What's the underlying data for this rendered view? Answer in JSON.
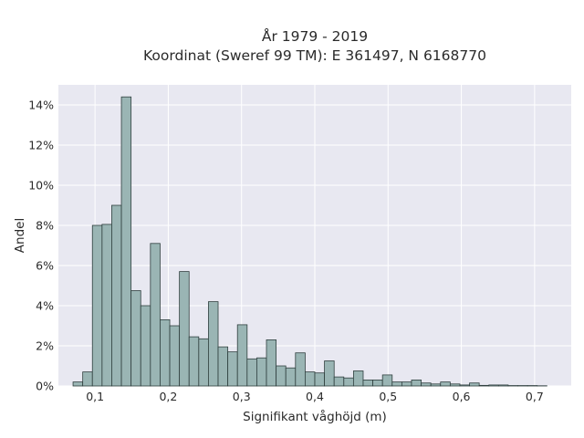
{
  "chart_data": {
    "type": "bar",
    "title_line1": "År 1979 - 2019",
    "title_line2": "Koordinat (Sweref 99 TM): E 361497, N 6168770",
    "xlabel": "Signifikant våghöjd (m)",
    "ylabel": "Andel",
    "xlim": [
      0.05,
      0.75
    ],
    "ylim": [
      0,
      15
    ],
    "xticks": [
      0.1,
      0.2,
      0.3,
      0.4,
      0.5,
      0.6,
      0.7
    ],
    "xtick_labels": [
      "0,1",
      "0,2",
      "0,3",
      "0,4",
      "0,5",
      "0,6",
      "0,7"
    ],
    "yticks": [
      0,
      2,
      4,
      6,
      8,
      10,
      12,
      14
    ],
    "ytick_labels": [
      "0%",
      "2%",
      "4%",
      "6%",
      "8%",
      "10%",
      "12%",
      "14%"
    ],
    "bin_start": 0.07,
    "bin_width": 0.0132,
    "values": [
      0.2,
      0.7,
      8.0,
      8.05,
      9.0,
      14.4,
      4.75,
      4.0,
      7.1,
      3.3,
      3.0,
      5.7,
      2.45,
      2.35,
      4.2,
      1.95,
      1.7,
      3.05,
      1.35,
      1.4,
      2.3,
      1.0,
      0.9,
      1.65,
      0.7,
      0.65,
      1.25,
      0.45,
      0.4,
      0.75,
      0.3,
      0.3,
      0.55,
      0.2,
      0.2,
      0.3,
      0.15,
      0.1,
      0.2,
      0.1,
      0.05,
      0.15,
      0.03,
      0.05,
      0.05,
      0.02,
      0.02,
      0.02,
      0.01
    ],
    "grid": true,
    "colors": {
      "plot_background": "#e8e8f1",
      "grid": "#ffffff",
      "bar_fill": "#9ab5b4",
      "bar_edge": "#2f3f3e"
    }
  }
}
